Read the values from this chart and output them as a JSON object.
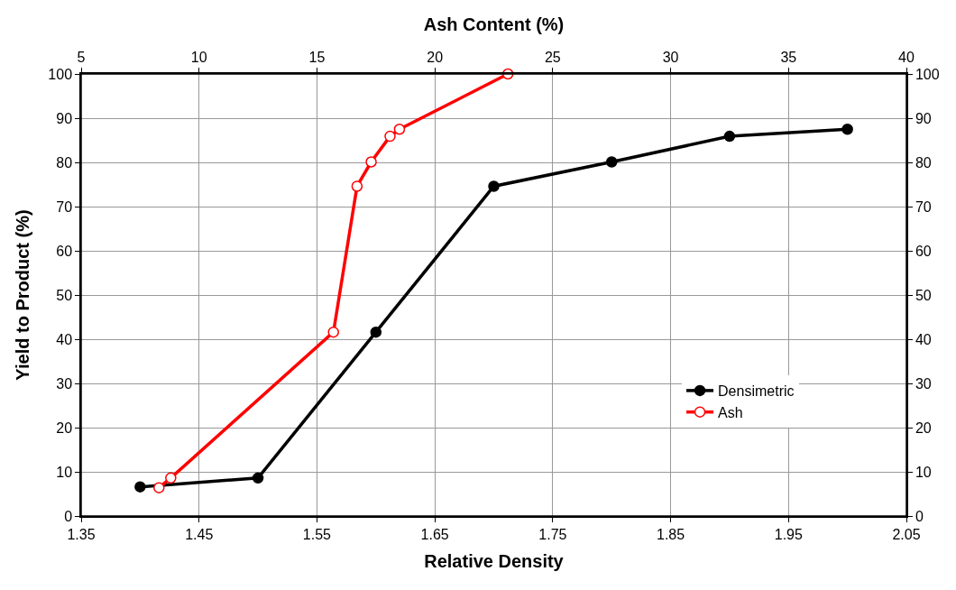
{
  "chart_data": {
    "type": "line",
    "xlabel": "Relative Density",
    "x2label": "Ash Content (%)",
    "ylabel": "Yield to Product (%)",
    "xlim": [
      1.35,
      2.05
    ],
    "xticks": [
      1.35,
      1.45,
      1.55,
      1.65,
      1.75,
      1.85,
      1.95,
      2.05
    ],
    "x2lim": [
      5,
      40
    ],
    "x2ticks": [
      5,
      10,
      15,
      20,
      25,
      30,
      35,
      40
    ],
    "ylim": [
      0,
      100
    ],
    "yticks": [
      0,
      10,
      20,
      30,
      40,
      50,
      60,
      70,
      80,
      90,
      100
    ],
    "y2lim": [
      0,
      100
    ],
    "y2ticks": [
      0,
      10,
      20,
      30,
      40,
      50,
      60,
      70,
      80,
      90,
      100
    ],
    "series": [
      {
        "name": "Densimetric",
        "color": "#000000",
        "x": [
          1.4,
          1.5,
          1.6,
          1.7,
          1.8,
          1.9,
          2.0
        ],
        "values": [
          6.6,
          8.6,
          41.6,
          74.6,
          80.1,
          85.9,
          87.5
        ]
      },
      {
        "name": "Ash",
        "color": "#ff0000",
        "axis": "x2",
        "x": [
          8.3,
          8.8,
          15.7,
          16.7,
          17.3,
          18.1,
          18.5,
          23.1
        ],
        "values": [
          6.4,
          8.6,
          41.6,
          74.6,
          80.1,
          85.9,
          87.5,
          100
        ]
      }
    ],
    "marker": "circle",
    "line_style": "solid",
    "grid": true,
    "legend": "bottom right"
  }
}
